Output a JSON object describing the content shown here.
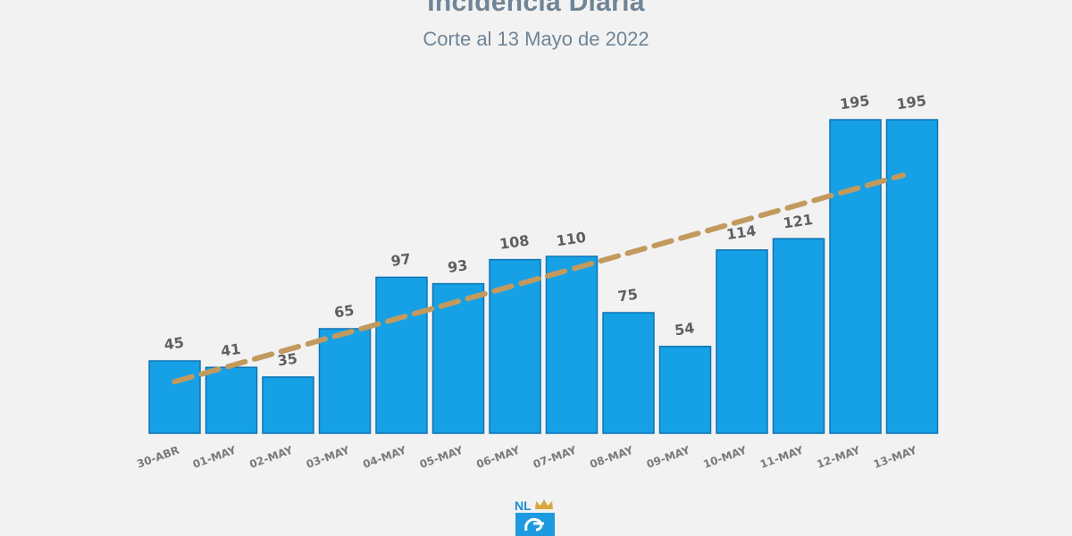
{
  "header": {
    "title": "Incidencia Diaria",
    "subtitle": "Corte al 13 Mayo de 2022"
  },
  "logo": {
    "text": "NL",
    "icon": "crown-icon"
  },
  "colors": {
    "bar": "#16a0e6",
    "bar_border": "#0e74b4",
    "trend": "#c29a5e",
    "text": "#6f8596"
  },
  "chart_data": {
    "type": "bar",
    "title": "Incidencia Diaria",
    "subtitle": "Corte al 13 Mayo de 2022",
    "categories": [
      "30-ABR",
      "01-MAY",
      "02-MAY",
      "03-MAY",
      "04-MAY",
      "05-MAY",
      "06-MAY",
      "07-MAY",
      "08-MAY",
      "09-MAY",
      "10-MAY",
      "11-MAY",
      "12-MAY",
      "13-MAY"
    ],
    "values": [
      45,
      41,
      35,
      65,
      97,
      93,
      108,
      110,
      75,
      54,
      114,
      121,
      195,
      195
    ],
    "trendline": {
      "type": "linear",
      "style": "dashed"
    },
    "ylim": [
      0,
      195
    ],
    "grid": false,
    "legend": "none"
  }
}
